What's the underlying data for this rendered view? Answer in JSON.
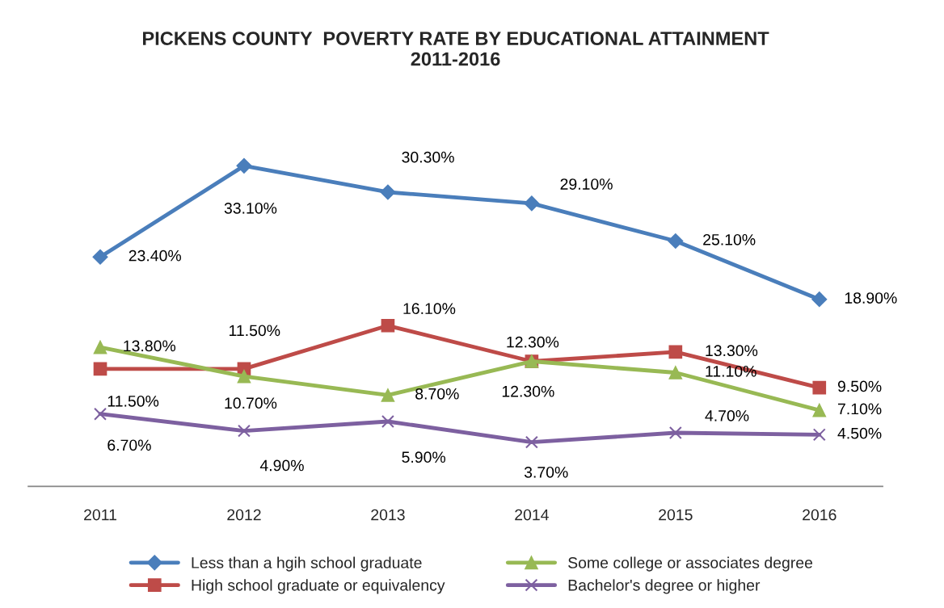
{
  "chart_data": {
    "type": "line",
    "title": "PICKENS COUNTY  POVERTY RATE BY EDUCATIONAL ATTAINMENT\n2011-2016",
    "categories": [
      "2011",
      "2012",
      "2013",
      "2014",
      "2015",
      "2016"
    ],
    "series": [
      {
        "name": "Less than a hgih school graduate",
        "color": "#4a7ebb",
        "marker": "diamond",
        "values": [
          23.4,
          33.1,
          30.3,
          29.1,
          25.1,
          18.9
        ],
        "value_labels": [
          "23.40%",
          "33.10%",
          "30.30%",
          "29.10%",
          "25.10%",
          "18.90%"
        ]
      },
      {
        "name": "High school graduate or equivalency",
        "color": "#be4b48",
        "marker": "square",
        "values": [
          11.5,
          11.5,
          16.1,
          12.3,
          13.3,
          9.5
        ],
        "value_labels": [
          "11.50%",
          "11.50%",
          "16.10%",
          "12.30%",
          "13.30%",
          "9.50%"
        ]
      },
      {
        "name": "Some college or associates degree",
        "color": "#98b954",
        "marker": "triangle",
        "values": [
          13.8,
          10.7,
          8.7,
          12.3,
          11.1,
          7.1
        ],
        "value_labels": [
          "13.80%",
          "10.70%",
          "8.70%",
          "12.30%",
          "11.10%",
          "7.10%"
        ]
      },
      {
        "name": "Bachelor's degree or higher",
        "color": "#7d60a0",
        "marker": "cross",
        "values": [
          6.7,
          4.9,
          5.9,
          3.7,
          4.7,
          4.5
        ],
        "value_labels": [
          "6.70%",
          "4.90%",
          "5.90%",
          "3.70%",
          "4.70%",
          "4.50%"
        ]
      }
    ],
    "tick_labels": "x",
    "grid": false,
    "legend": "bottom",
    "line_style": "solid"
  }
}
